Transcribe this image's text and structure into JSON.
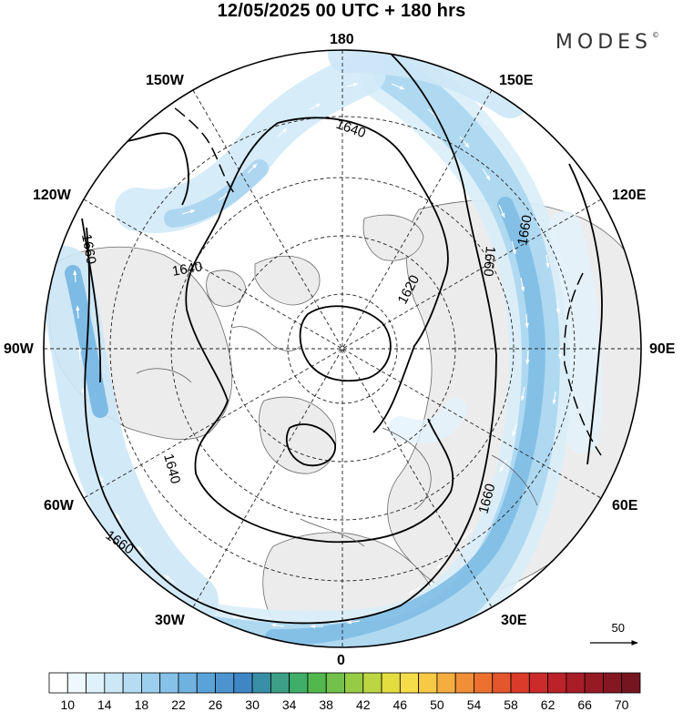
{
  "title": "12/05/2025  00 UTC  + 180 hrs",
  "brand": "MODES",
  "brand_mark": "©",
  "longitude_labels": {
    "top": "180",
    "bottom": "0",
    "left": "90W",
    "right": "90E",
    "l150": "150W",
    "r150": "150E",
    "l120": "120W",
    "r120": "120E",
    "l60": "60W",
    "r60": "60E",
    "l30": "30W",
    "r30": "30E"
  },
  "contour_labels": [
    "1640",
    "1640",
    "1620",
    "1640",
    "1660",
    "1660",
    "1660",
    "1660",
    "1660"
  ],
  "reference_vector": {
    "value": "50"
  },
  "colorbar": {
    "ticks": [
      "10",
      "14",
      "18",
      "22",
      "26",
      "30",
      "34",
      "38",
      "42",
      "46",
      "50",
      "54",
      "58",
      "62",
      "66",
      "70"
    ],
    "colors": [
      "#ffffff",
      "#eef8fd",
      "#dff1fb",
      "#cce8f7",
      "#b5dcf2",
      "#9ccfee",
      "#86c2e8",
      "#6fb2e0",
      "#5aa3d8",
      "#4c94cf",
      "#3f86c5",
      "#3a8fa8",
      "#3c9f86",
      "#3fae68",
      "#52b84e",
      "#73c14a",
      "#96cb45",
      "#bcd542",
      "#e3dd40",
      "#f5dd4a",
      "#f7c944",
      "#f4ad3e",
      "#f08f37",
      "#ec7131",
      "#e4562c",
      "#db3b2a",
      "#cc2b2b",
      "#bb2229",
      "#a91d27",
      "#961a24",
      "#841721",
      "#741520"
    ]
  }
}
